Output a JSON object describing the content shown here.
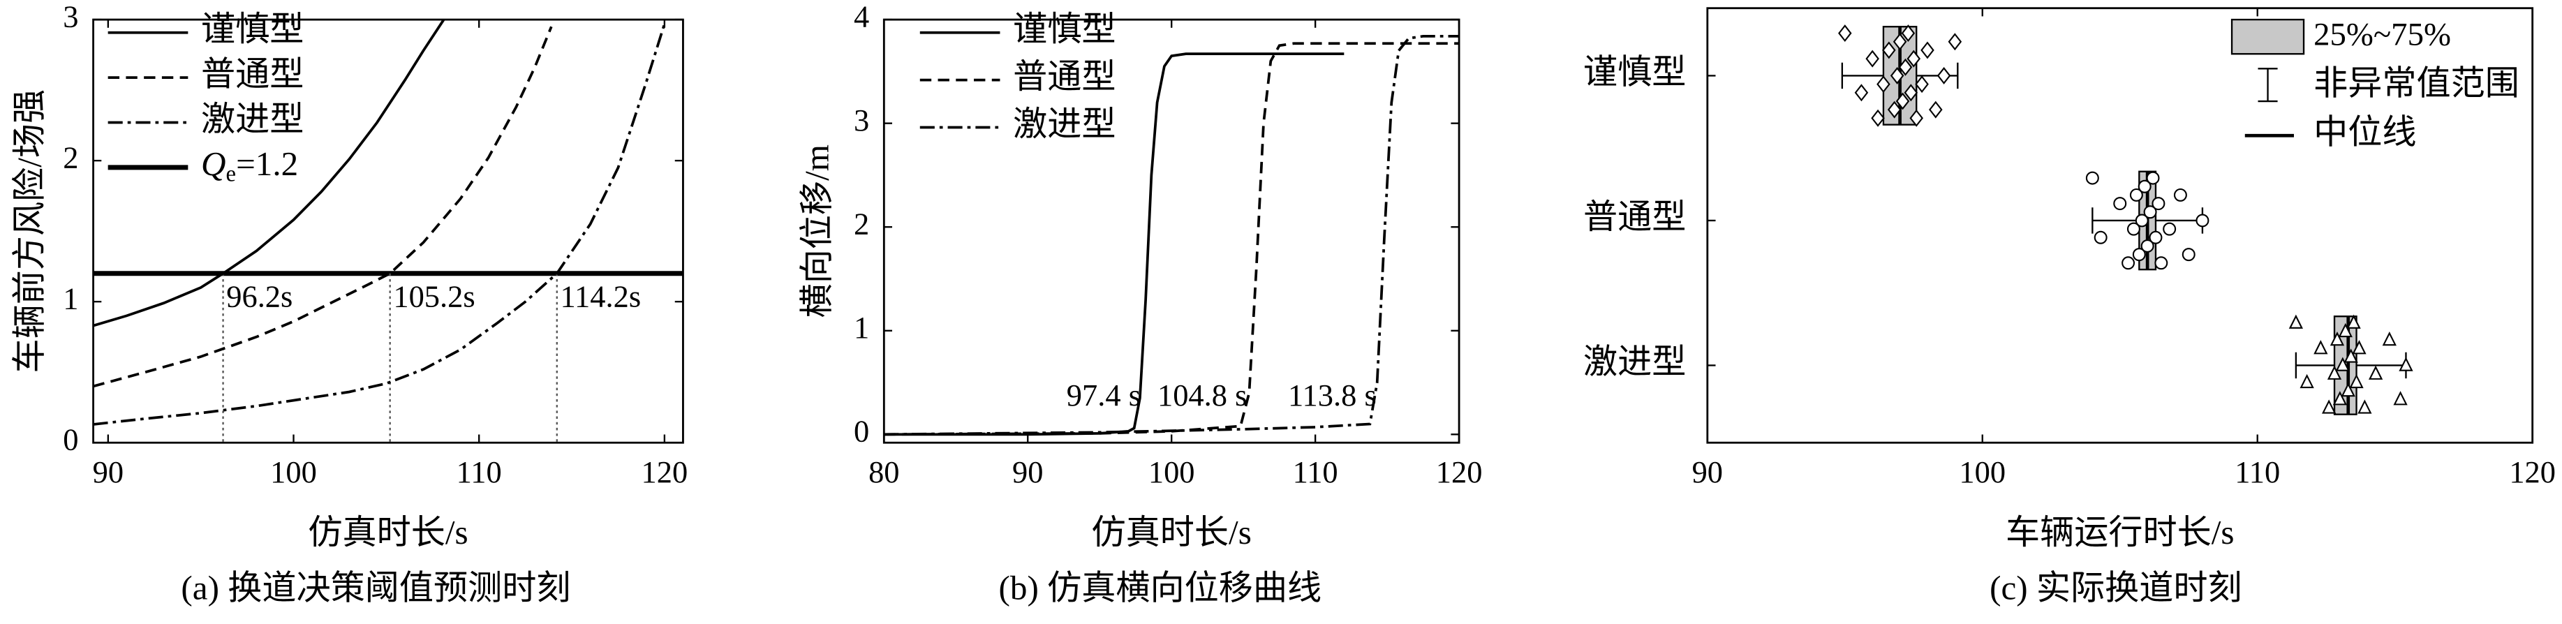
{
  "chart_data": [
    {
      "type": "line",
      "caption": "(a) 换道决策阈值预测时刻",
      "xlabel": "仿真时长/s",
      "ylabel": "车辆前方风险/场强",
      "xlim": [
        89.2,
        121
      ],
      "ylim": [
        0,
        3
      ],
      "xticks": [
        90,
        100,
        110,
        120
      ],
      "yticks": [
        0,
        1,
        2,
        3
      ],
      "series": [
        {
          "name": "谨慎型",
          "color": "#000000",
          "dash": "solid",
          "x": [
            89.2,
            91,
            93,
            95,
            96.2,
            98,
            100,
            101.5,
            103,
            104.5,
            106,
            107,
            108.1
          ],
          "values": [
            0.83,
            0.9,
            0.99,
            1.1,
            1.2,
            1.36,
            1.58,
            1.78,
            2.01,
            2.27,
            2.57,
            2.78,
            3.0
          ]
        },
        {
          "name": "普通型",
          "color": "#000000",
          "dash": "dash",
          "x": [
            89.2,
            92,
            95,
            98,
            100,
            102,
            104,
            105.2,
            107,
            109,
            110.5,
            112,
            113,
            113.9
          ],
          "values": [
            0.4,
            0.5,
            0.61,
            0.75,
            0.86,
            0.99,
            1.12,
            1.2,
            1.42,
            1.73,
            2.02,
            2.38,
            2.66,
            2.95
          ]
        },
        {
          "name": "激进型",
          "color": "#000000",
          "dash": "dashdot",
          "x": [
            89.2,
            92,
            95,
            98,
            100,
            103,
            105,
            107,
            109,
            111,
            112.5,
            114.2,
            116,
            117.5,
            119,
            120
          ],
          "values": [
            0.13,
            0.17,
            0.21,
            0.26,
            0.3,
            0.36,
            0.42,
            0.52,
            0.66,
            0.85,
            1.0,
            1.2,
            1.55,
            1.95,
            2.55,
            2.97
          ]
        }
      ],
      "threshold": {
        "symbol": "Q",
        "subscript": "e",
        "relation": "=",
        "value": 1.2,
        "color": "#000000"
      },
      "crossings": [
        {
          "x": 96.2,
          "label": "96.2s"
        },
        {
          "x": 105.2,
          "label": "105.2s"
        },
        {
          "x": 114.2,
          "label": "114.2s"
        }
      ]
    },
    {
      "type": "line",
      "caption": "(b) 仿真横向位移曲线",
      "xlabel": "仿真时长/s",
      "ylabel": "横向位移/m",
      "xlim": [
        80,
        120
      ],
      "ylim": [
        -0.08,
        4
      ],
      "xticks": [
        80,
        90,
        100,
        110,
        120
      ],
      "yticks": [
        0,
        1,
        2,
        3,
        4
      ],
      "series": [
        {
          "name": "谨慎型",
          "color": "#000000",
          "dash": "solid",
          "x": [
            80,
            90,
            95,
            97,
            97.4,
            97.8,
            98.2,
            98.6,
            99,
            99.5,
            100,
            101,
            112
          ],
          "values": [
            0,
            0,
            0.01,
            0.03,
            0.06,
            0.35,
            1.3,
            2.5,
            3.2,
            3.55,
            3.65,
            3.67,
            3.67
          ]
        },
        {
          "name": "普通型",
          "color": "#000000",
          "dash": "dash",
          "x": [
            80,
            95,
            100,
            104.8,
            105.4,
            105.9,
            106.4,
            106.9,
            107.5,
            108.5,
            120
          ],
          "values": [
            0,
            0.01,
            0.03,
            0.08,
            0.4,
            1.6,
            3.0,
            3.6,
            3.75,
            3.77,
            3.77
          ]
        },
        {
          "name": "激进型",
          "color": "#000000",
          "dash": "dashdot",
          "x": [
            80,
            95,
            105,
            110,
            113.8,
            114.3,
            114.8,
            115.3,
            115.8,
            116.5,
            117.5,
            120
          ],
          "values": [
            0,
            0.02,
            0.05,
            0.07,
            0.1,
            0.5,
            1.9,
            3.2,
            3.7,
            3.82,
            3.84,
            3.84
          ]
        }
      ],
      "annotations": [
        {
          "x": 97.4,
          "label": "97.4 s"
        },
        {
          "x": 104.8,
          "label": "104.8 s"
        },
        {
          "x": 113.8,
          "label": "113.8 s"
        }
      ]
    },
    {
      "type": "box",
      "caption": "(c) 实际换道时刻",
      "xlabel": "车辆运行时长/s",
      "xlim": [
        90,
        120
      ],
      "xticks": [
        90,
        100,
        110,
        120
      ],
      "categories": [
        "谨慎型",
        "普通型",
        "激进型"
      ],
      "legend": {
        "box": "25%~75%",
        "whisker": "非异常值范围",
        "median": "中位线"
      },
      "box_color": "#c8c8c8",
      "boxes": [
        {
          "marker": "diamond",
          "q1": 96.4,
          "median": 97,
          "q3": 97.6,
          "whisker_low": 94.9,
          "whisker_high": 99.1,
          "points": [
            95,
            95.6,
            96,
            96.2,
            96.4,
            96.6,
            96.8,
            96.9,
            97,
            97.1,
            97.2,
            97.3,
            97.4,
            97.5,
            97.6,
            97.8,
            98,
            98.3,
            98.6,
            99
          ]
        },
        {
          "marker": "circle",
          "q1": 105.7,
          "median": 106,
          "q3": 106.3,
          "whisker_low": 104,
          "whisker_high": 108,
          "points": [
            104,
            104.3,
            105,
            105.3,
            105.5,
            105.6,
            105.7,
            105.8,
            105.9,
            106,
            106.1,
            106.2,
            106.3,
            106.4,
            106.5,
            106.8,
            107.2,
            107.5,
            108
          ]
        },
        {
          "marker": "triangle",
          "q1": 112.8,
          "median": 113.3,
          "q3": 113.6,
          "whisker_low": 111.4,
          "whisker_high": 115.4,
          "points": [
            111.4,
            111.8,
            112.3,
            112.6,
            112.8,
            112.9,
            113,
            113.1,
            113.2,
            113.3,
            113.4,
            113.5,
            113.6,
            113.7,
            113.9,
            114.3,
            114.8,
            115.2,
            115.4
          ]
        }
      ]
    }
  ]
}
